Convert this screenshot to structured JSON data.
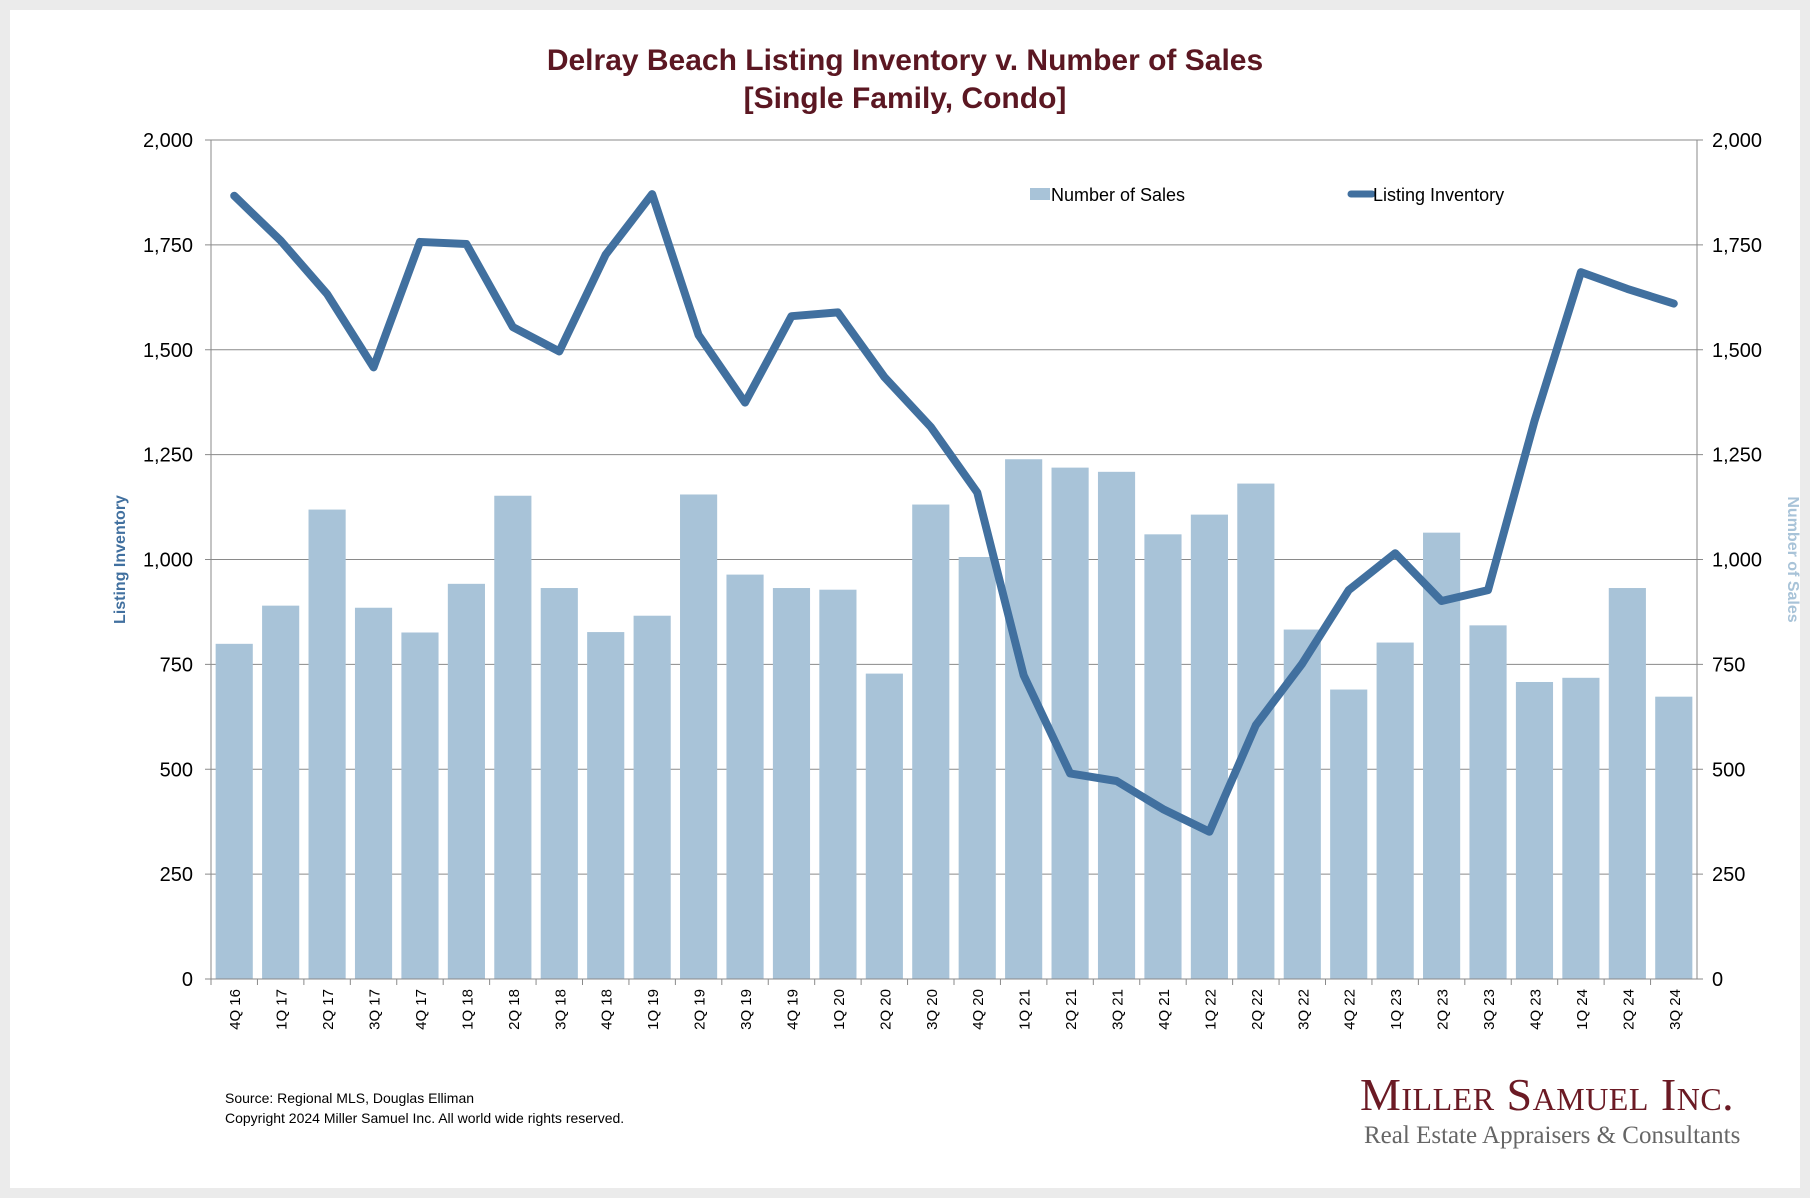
{
  "chart_data": {
    "type": "bar+line",
    "title": "Delray Beach Listing Inventory v. Number of Sales",
    "subtitle": "[Single Family, Condo]",
    "ylabel_left": "Listing Inventory",
    "ylabel_right": "Number of Sales",
    "ylim": [
      0,
      2000
    ],
    "yticks": [
      "0",
      "250",
      "500",
      "750",
      "1,000",
      "1,250",
      "1,500",
      "1,750",
      "2,000"
    ],
    "grid": true,
    "legend_placement": "top",
    "categories": [
      "4Q 16",
      "1Q 17",
      "2Q 17",
      "3Q 17",
      "4Q 17",
      "1Q 18",
      "2Q 18",
      "3Q 18",
      "4Q 18",
      "1Q 19",
      "2Q 19",
      "3Q 19",
      "4Q 19",
      "1Q 20",
      "2Q 20",
      "3Q 20",
      "4Q 20",
      "1Q 21",
      "2Q 21",
      "3Q 21",
      "4Q 21",
      "1Q 22",
      "2Q 22",
      "3Q 22",
      "4Q 22",
      "1Q 23",
      "2Q 23",
      "3Q 23",
      "4Q 23",
      "1Q 24",
      "2Q 24",
      "3Q 24"
    ],
    "series": [
      {
        "name": "Number of Sales",
        "type": "bar",
        "axis": "right",
        "color": "#a8c3d8",
        "values": [
          799,
          890,
          1119,
          885,
          826,
          942,
          1152,
          932,
          827,
          866,
          1155,
          964,
          932,
          928,
          728,
          1131,
          1006,
          1239,
          1219,
          1209,
          1060,
          1107,
          1181,
          833,
          690,
          802,
          1064,
          843,
          708,
          718,
          932,
          673
        ]
      },
      {
        "name": "Listing Inventory",
        "type": "line",
        "axis": "left",
        "color": "#41709f",
        "values": [
          1867,
          1760,
          1633,
          1458,
          1757,
          1752,
          1554,
          1496,
          1727,
          1871,
          1535,
          1374,
          1580,
          1589,
          1435,
          1316,
          1160,
          724,
          490,
          472,
          405,
          351,
          605,
          752,
          927,
          1015,
          901,
          927,
          1330,
          1685,
          1645,
          1610
        ]
      }
    ]
  },
  "footer": {
    "source": "Source: Regional MLS, Douglas Elliman",
    "copyright": "Copyright 2024 Miller Samuel Inc.  All world wide rights reserved."
  },
  "logo": {
    "name": "Miller Samuel Inc.",
    "tagline": "Real Estate Appraisers & Consultants"
  }
}
